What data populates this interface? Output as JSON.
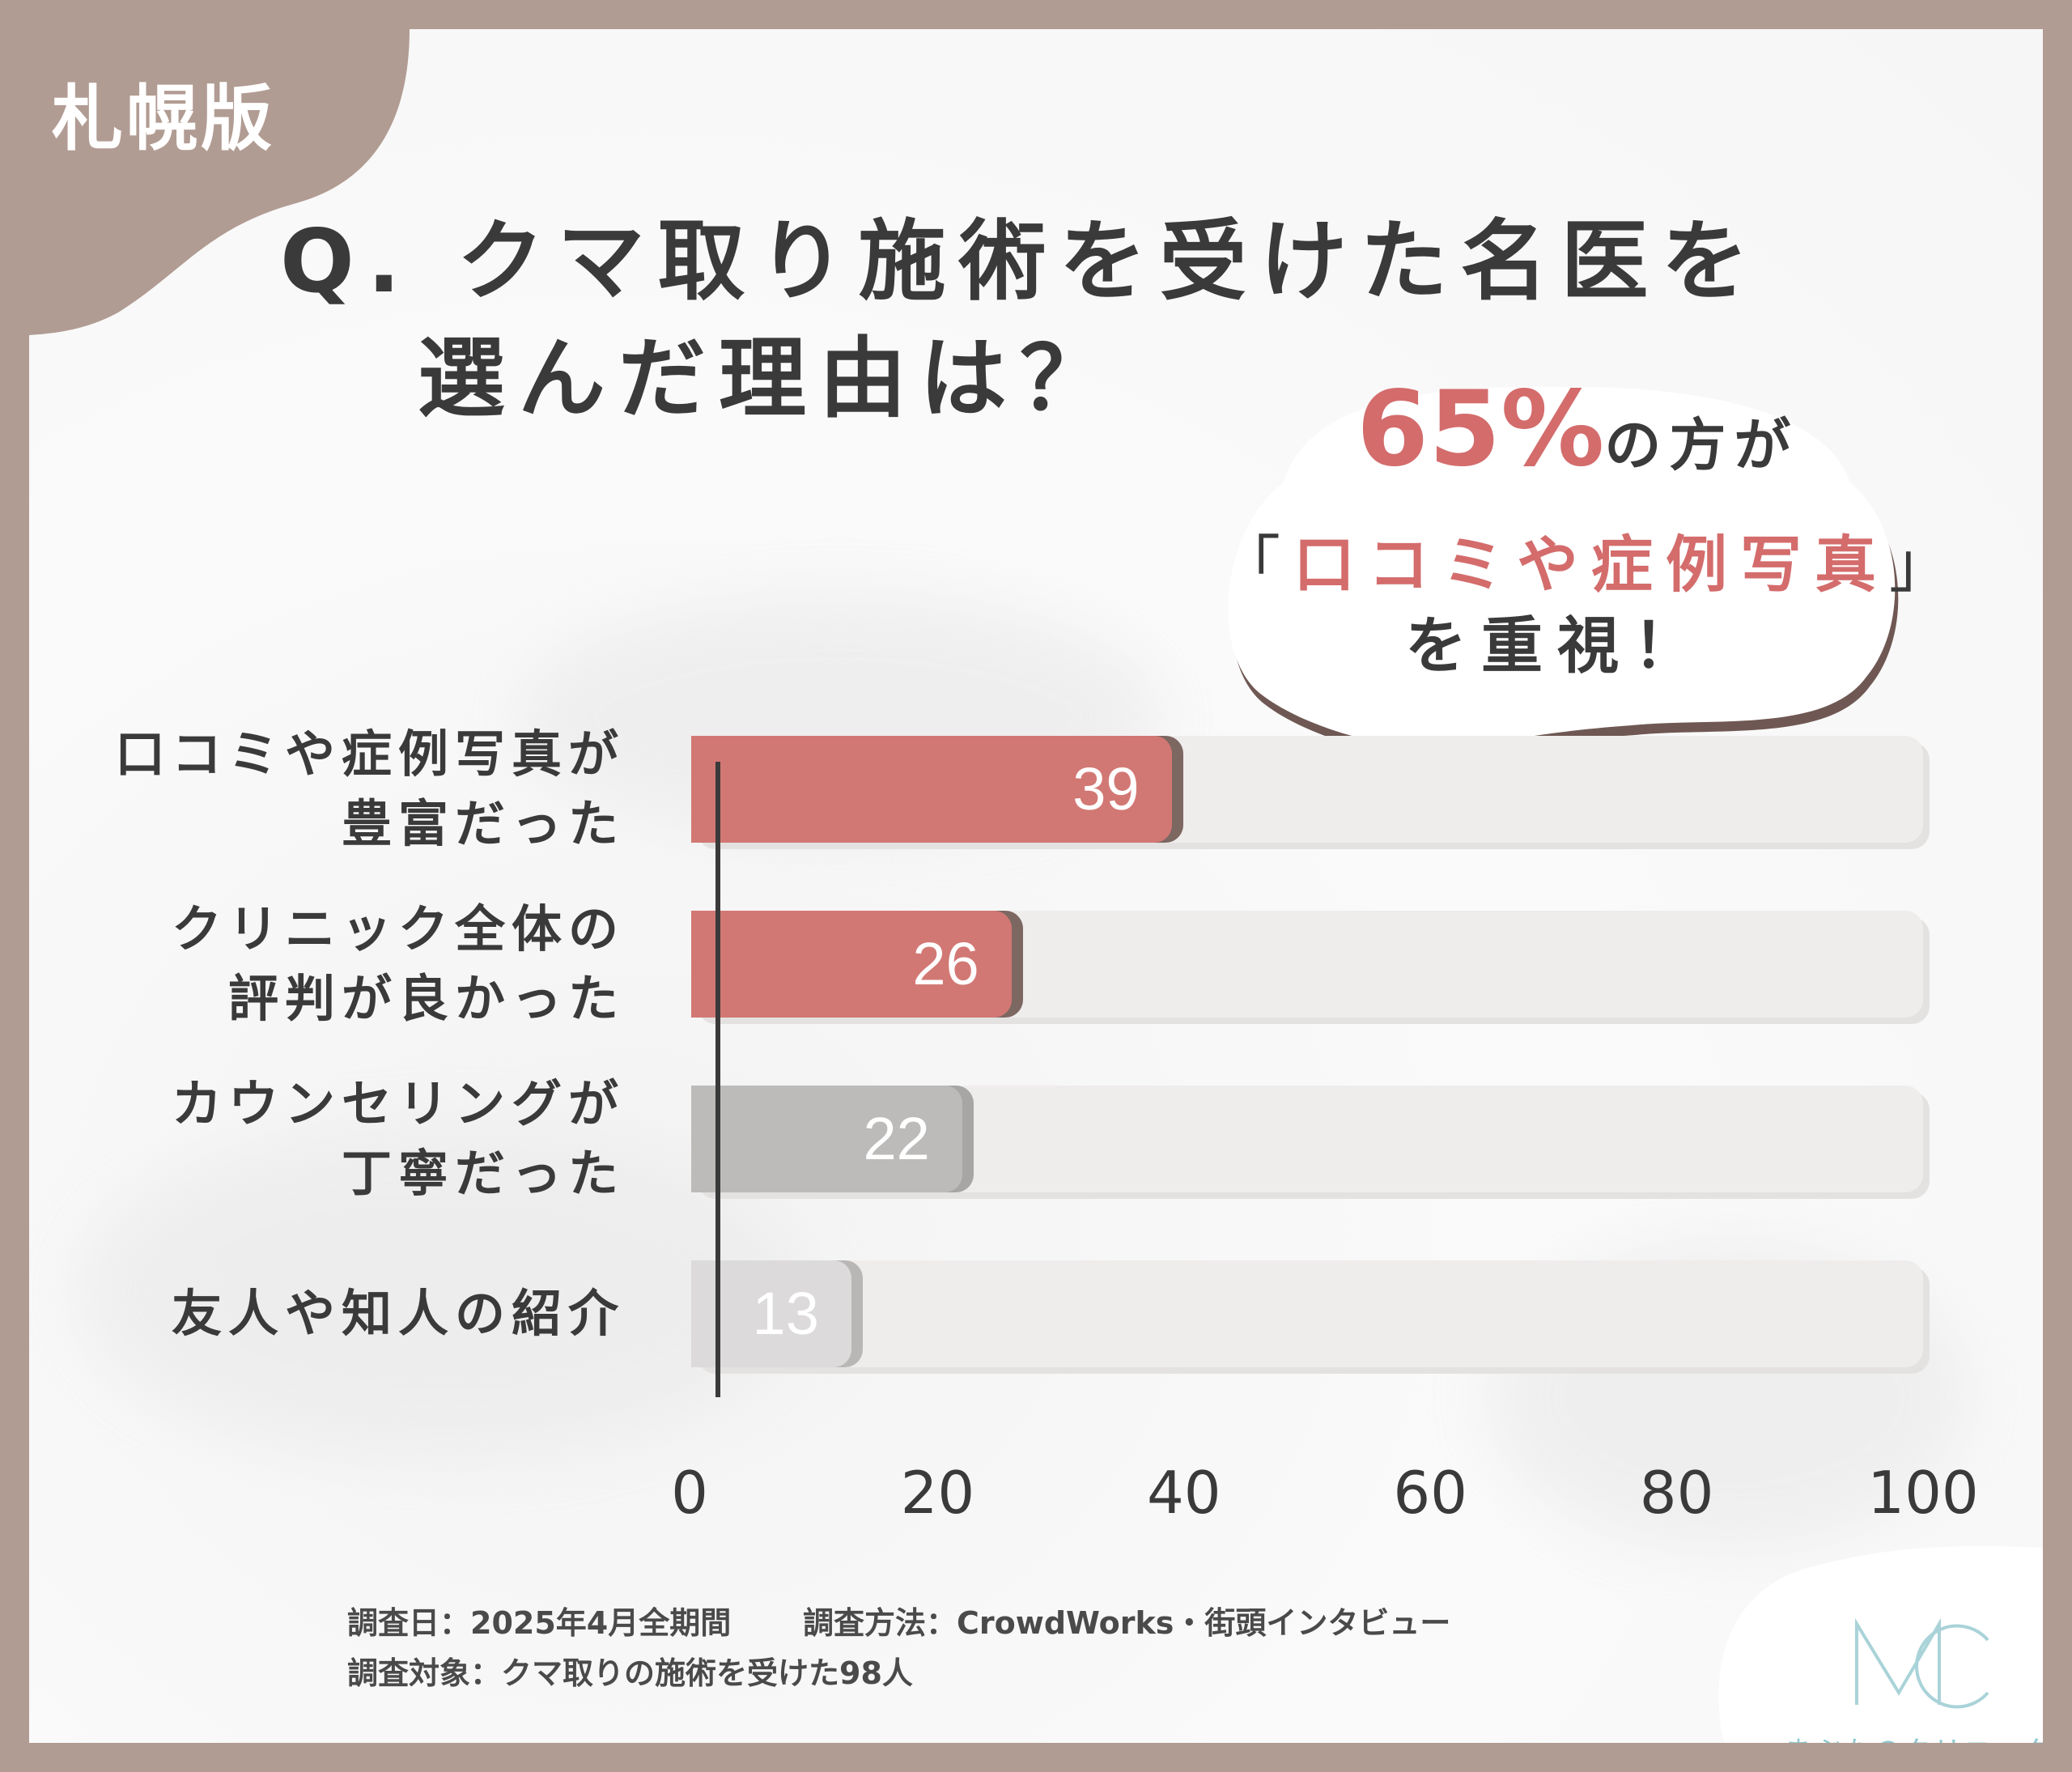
{
  "tag": "札幌版",
  "title": {
    "line1": "Q. クマ取り施術を受けた名医を",
    "line2": "選んだ理由は？"
  },
  "bubble": {
    "percent": "65%",
    "suffix": "の方が",
    "highlight_open": "「",
    "highlight": "口コミや症例写真",
    "highlight_close": "」",
    "line3": "を重視！"
  },
  "chart_data": {
    "type": "bar",
    "orientation": "horizontal",
    "categories": [
      [
        "口コミや症例写真が",
        "豊富だった"
      ],
      [
        "クリニック全体の",
        "評判が良かった"
      ],
      [
        "カウンセリングが",
        "丁寧だった"
      ],
      [
        "友人や知人の紹介"
      ]
    ],
    "values": [
      39,
      26,
      22,
      13
    ],
    "xlim": [
      0,
      100
    ],
    "xticks": [
      "0",
      "20",
      "40",
      "60",
      "80",
      "100"
    ],
    "colors": [
      "#d27874",
      "#d27874",
      "#bdbbba",
      "#dcdada"
    ],
    "shadow_colors": [
      "#7d6761",
      "#7d6761",
      "#a8a6a5",
      "#b9b7b6"
    ]
  },
  "footer": {
    "date": "調査日：2025年4月全期間",
    "method": "調査方法：CrowdWorks・街頭インタビュー",
    "target": "調査対象：クマ取りの施術を受けた98人"
  },
  "logo": {
    "text": "まぶたのクリニック",
    "color": "#8cc8cf"
  },
  "colors": {
    "frame": "#b19c93",
    "accent": "#d46c6c"
  }
}
